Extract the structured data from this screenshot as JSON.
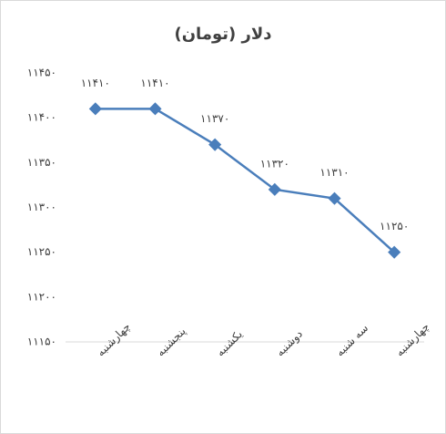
{
  "chart_data": {
    "type": "line",
    "title": "دلار (تومان)",
    "categories": [
      "چهارشنبه",
      "پنجشنبه",
      "یکشنبه",
      "دوشنبه",
      "سه شنبه",
      "چهارشنبه"
    ],
    "values": [
      11410,
      11410,
      11370,
      11320,
      11310,
      11250
    ],
    "value_labels": [
      "۱۱۴۱۰",
      "۱۱۴۱۰",
      "۱۱۳۷۰",
      "۱۱۳۲۰",
      "۱۱۳۱۰",
      "۱۱۲۵۰"
    ],
    "color": "#4a7ebb",
    "ylim": [
      11150,
      11450
    ],
    "yticks": [
      {
        "value": 11150,
        "label": "۱۱۱۵۰"
      },
      {
        "value": 11200,
        "label": "۱۱۲۰۰"
      },
      {
        "value": 11250,
        "label": "۱۱۲۵۰"
      },
      {
        "value": 11300,
        "label": "۱۱۳۰۰"
      },
      {
        "value": 11350,
        "label": "۱۱۳۵۰"
      },
      {
        "value": 11400,
        "label": "۱۱۴۰۰"
      },
      {
        "value": 11450,
        "label": "۱۱۴۵۰"
      }
    ],
    "grid": false
  }
}
